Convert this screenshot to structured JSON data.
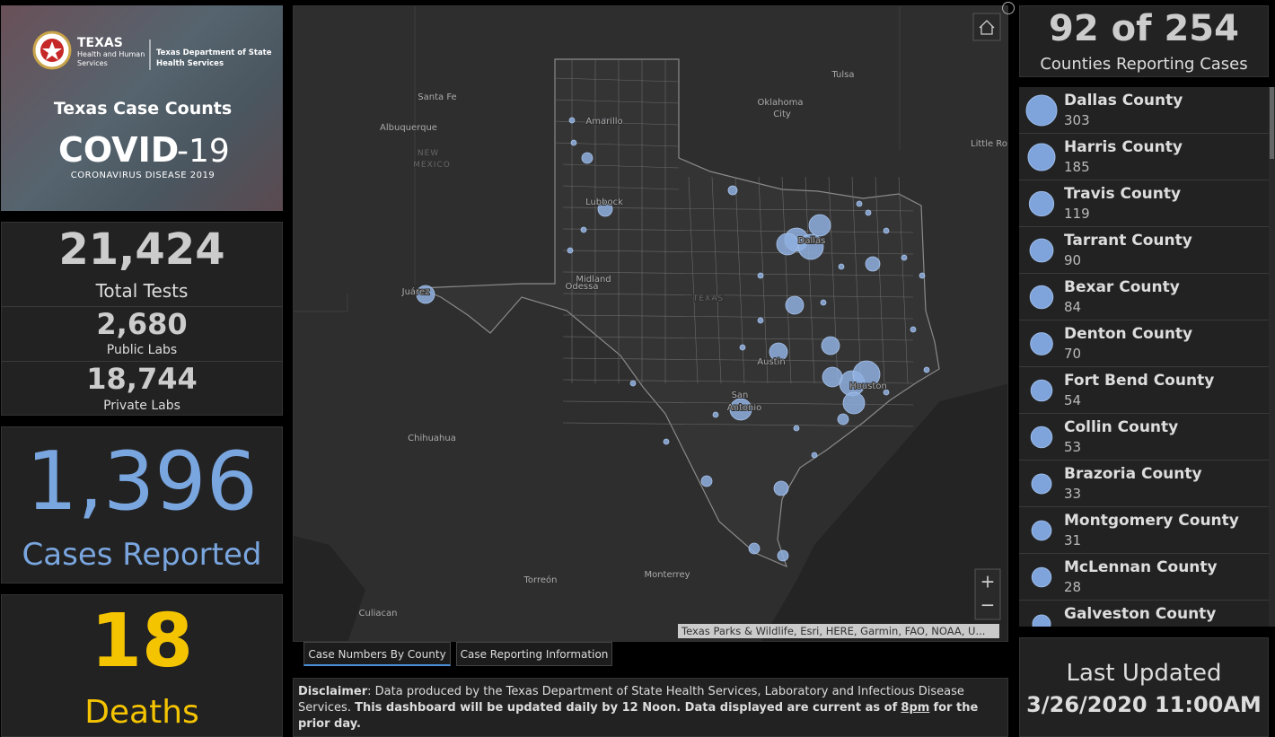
{
  "logo": {
    "agency": "TEXAS",
    "agency_sub_1": "Health and Human",
    "agency_sub_2": "Services",
    "department_1": "Texas Department of State",
    "department_2": "Health Services",
    "title": "Texas Case Counts",
    "covid": "COVID",
    "covid_num": "-19",
    "subtitle": "CORONAVIRUS DISEASE 2019"
  },
  "tests": {
    "total": "21,424",
    "total_label": "Total Tests",
    "public": "2,680",
    "public_label": "Public Labs",
    "private": "18,744",
    "private_label": "Private Labs"
  },
  "cases": {
    "value": "1,396",
    "label": "Cases Reported"
  },
  "deaths": {
    "value": "18",
    "label": "Deaths"
  },
  "map": {
    "labels": [
      "Santa Fe",
      "Albuquerque",
      "NEW",
      "MEXICO",
      "Oklahoma",
      "City",
      "Tulsa",
      "Little Ro",
      "Amarillo",
      "Lubbock",
      "Dallas",
      "Midland",
      "Odessa",
      "TEXAS",
      "Juárez",
      "Austin",
      "Houston",
      "San",
      "Antonio",
      "Chihuahua",
      "Torreón",
      "Monterrey",
      "Culiacan"
    ],
    "attribution": "Texas Parks & Wildlife, Esri, HERE, Garmin, FAO, NOAA, U...",
    "zoom_in": "+",
    "zoom_out": "−"
  },
  "tabs": [
    "Case Numbers By County",
    "Case Reporting Information"
  ],
  "disclaimer": {
    "label": "Disclaimer",
    "text": ": Data produced by the Texas Department of State Health Services, Laboratory and Infectious Disease Services.",
    "notice_before": "This dashboard will be updated daily by 12 Noon. Data displayed are current as of",
    "notice_time": "8pm",
    "notice_after": "for the prior day."
  },
  "counties_reporting": {
    "value": "92 of 254",
    "label": "Counties Reporting Cases"
  },
  "counties": {
    "rows": [
      {
        "name": "Dallas County",
        "value": 303
      },
      {
        "name": "Harris County",
        "value": 185
      },
      {
        "name": "Travis County",
        "value": 119
      },
      {
        "name": "Tarrant County",
        "value": 90
      },
      {
        "name": "Bexar County",
        "value": 84
      },
      {
        "name": "Denton County",
        "value": 70
      },
      {
        "name": "Fort Bend County",
        "value": 54
      },
      {
        "name": "Collin County",
        "value": 53
      },
      {
        "name": "Brazoria County",
        "value": 33
      },
      {
        "name": "Montgomery County",
        "value": 31
      },
      {
        "name": "McLennan County",
        "value": 28
      },
      {
        "name": "Galveston County"
      }
    ]
  },
  "last_updated": {
    "label": "Last Updated",
    "value": "3/26/2020 11:00AM"
  }
}
